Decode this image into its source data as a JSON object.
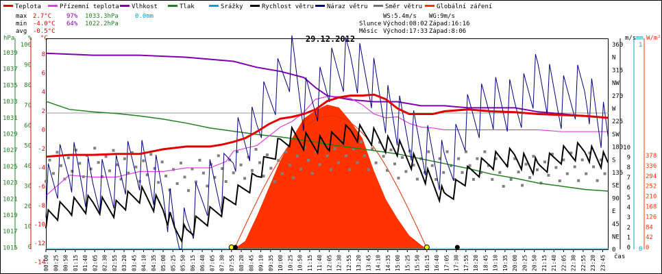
{
  "legend": [
    {
      "label": "Teplota",
      "color": "#e00000"
    },
    {
      "label": "Přízemní teplota",
      "color": "#e040e0"
    },
    {
      "label": "Vlhkost",
      "color": "#8000b0"
    },
    {
      "label": "Tlak",
      "color": "#208020"
    },
    {
      "label": "Srážky",
      "color": "#00a0d0"
    },
    {
      "label": "Rychlost větru",
      "color": "#000000"
    },
    {
      "label": "Náraz větru",
      "color": "#000080"
    },
    {
      "label": "Směr větru",
      "color": "#707070"
    },
    {
      "label": "Globální záření",
      "color": "#ff3300"
    }
  ],
  "stats": {
    "max_label": "max",
    "max_temp": "2.7°C",
    "max_hum": "97%",
    "max_press": "1033.3hPa",
    "max_rain": "0.0mm",
    "min_label": "min",
    "min_temp": "-4.0°C",
    "min_hum": "64%",
    "min_press": "1022.2hPa",
    "avg_label": "avg",
    "avg_temp": "-0.5°C"
  },
  "wind_info": {
    "ws": "WS:5.4m/s",
    "wg": "WG:9m/s"
  },
  "sun_info": {
    "label": "Slunce",
    "rise": "Východ:08:02",
    "set": "Západ:16:16"
  },
  "moon_info": {
    "label": "Měsíc",
    "rise": "Východ:17:33",
    "set": "Západ:8:06"
  },
  "chart_title": "29.12.2012",
  "axis_units": {
    "hpa": "hPa",
    "pct": "%",
    "degc": "°C",
    "ms": "m/s",
    "mm": "mm",
    "wm2": "W/m²",
    "time": "čas"
  },
  "chart_data": {
    "type": "line",
    "title": "29.12.2012",
    "x_ticks": [
      "00:00",
      "00:25",
      "00:50",
      "01:15",
      "01:40",
      "02:05",
      "02:30",
      "02:55",
      "03:20",
      "03:45",
      "04:10",
      "04:35",
      "05:00",
      "05:25",
      "05:50",
      "06:15",
      "06:40",
      "07:05",
      "07:30",
      "07:55",
      "08:20",
      "08:45",
      "09:10",
      "09:35",
      "10:00",
      "10:25",
      "10:50",
      "11:15",
      "11:40",
      "12:05",
      "12:30",
      "12:55",
      "13:20",
      "13:45",
      "14:10",
      "14:35",
      "15:00",
      "15:25",
      "15:50",
      "16:15",
      "16:40",
      "17:05",
      "17:30",
      "17:55",
      "18:20",
      "18:45",
      "19:10",
      "19:35",
      "20:00",
      "20:25",
      "20:50",
      "21:15",
      "21:40",
      "22:05",
      "22:30",
      "22:55",
      "23:20",
      "23:45"
    ],
    "axes": {
      "pressure_hpa": {
        "ticks": [
          "1039",
          "1037",
          "1035",
          "1033",
          "1031",
          "1029",
          "1027",
          "1025",
          "1023",
          "1021",
          "1019",
          "1017",
          "1015"
        ],
        "range": [
          1015,
          1041
        ]
      },
      "humidity_pct": {
        "ticks": [
          "100",
          "90",
          "80",
          "70",
          "60",
          "50",
          "40",
          "30",
          "20",
          "10",
          "0"
        ],
        "range": [
          0,
          104
        ]
      },
      "temp_c": {
        "ticks": [
          "8",
          "6",
          "4",
          "2",
          "0",
          "-2",
          "-4",
          "-6",
          "-8",
          "-10",
          "-12",
          "-14"
        ],
        "range": [
          -14,
          8.7
        ]
      },
      "wind_dir": {
        "ticks": [
          "360",
          "N",
          "315",
          "NW",
          "270",
          "W",
          "225",
          "SW",
          "180",
          "S",
          "135",
          "SE",
          "90",
          "E",
          "45",
          "NE",
          "0"
        ]
      },
      "wind_ms": {
        "ticks": [
          "10",
          "9",
          "8",
          "7",
          "6",
          "5",
          "4",
          "3",
          "2",
          "1",
          "0"
        ],
        "range": [
          0,
          10
        ]
      },
      "rain_mm": {
        "ticks": [
          "1",
          "0"
        ]
      },
      "radiation_wm2": {
        "ticks": [
          "378",
          "336",
          "294",
          "252",
          "210",
          "168",
          "126",
          "84",
          "42",
          "0"
        ],
        "range": [
          0,
          378
        ]
      }
    },
    "series": [
      {
        "name": "Teplota",
        "axis": "temp_c",
        "x": [
          0,
          1,
          2,
          3,
          4,
          5,
          6,
          7,
          7.5,
          8,
          8.5,
          9,
          9.5,
          10,
          10.5,
          11,
          11.5,
          12,
          12.5,
          13,
          13.5,
          14,
          14.5,
          15,
          15.5,
          16,
          16.5,
          17,
          18,
          19,
          20,
          21,
          22,
          23,
          23.98
        ],
        "values": [
          -4.0,
          -3.8,
          -3.8,
          -3.7,
          -3.7,
          -3.2,
          -2.9,
          -2.9,
          -2.7,
          -2.4,
          -2.0,
          -1.3,
          -0.5,
          0.1,
          0.3,
          0.6,
          1.1,
          2.0,
          2.4,
          2.6,
          2.6,
          2.7,
          2.2,
          1.2,
          0.6,
          0.6,
          0.6,
          0.9,
          1.1,
          0.9,
          0.8,
          0.6,
          0.5,
          0.4,
          0.2
        ]
      },
      {
        "name": "Přízemní teplota",
        "axis": "temp_c",
        "x": [
          0,
          1,
          2,
          3,
          4,
          5,
          6,
          7,
          7.7,
          8,
          9,
          9.5,
          10,
          10.5,
          11,
          11.5,
          12,
          12.5,
          13,
          13.5,
          14,
          14.5,
          15,
          15.5,
          16,
          16.5,
          17,
          18,
          19,
          20,
          21,
          22,
          23,
          23.98
        ],
        "values": [
          -8.2,
          -6.0,
          -6.2,
          -6.2,
          -5.6,
          -5.6,
          -5.2,
          -5.2,
          -4.5,
          -3.4,
          -2.8,
          -1.8,
          -0.8,
          -0.2,
          0.8,
          2.2,
          2.5,
          2.5,
          2.3,
          1.6,
          0.6,
          0.2,
          0.3,
          -0.4,
          -0.8,
          -0.9,
          -1.1,
          -1.1,
          -1.1,
          -1.1,
          -1.1,
          -1.3,
          -1.3,
          -1.3
        ]
      },
      {
        "name": "Vlhkost",
        "axis": "humidity_pct",
        "x": [
          0,
          2,
          4,
          6,
          8,
          9,
          10,
          11,
          11.5,
          12,
          13,
          14,
          15,
          16,
          17,
          18,
          19,
          20,
          21,
          22,
          23,
          23.98
        ],
        "values": [
          97,
          96,
          96,
          95,
          93,
          90,
          88,
          85,
          80,
          76,
          74,
          73,
          73,
          71,
          71,
          70,
          70,
          70,
          68,
          67,
          66,
          65
        ]
      },
      {
        "name": "Tlak",
        "axis": "pressure_hpa",
        "x": [
          0,
          1,
          2,
          3,
          4,
          5,
          6,
          7,
          8,
          9,
          10,
          11,
          12,
          13,
          14,
          15,
          16,
          17,
          18,
          19,
          20,
          21,
          22,
          23,
          23.98
        ],
        "values": [
          1033.3,
          1032.3,
          1032.0,
          1031.8,
          1031.5,
          1031.1,
          1030.6,
          1030.0,
          1029.6,
          1029.2,
          1028.9,
          1028.5,
          1028.0,
          1027.6,
          1027.2,
          1026.8,
          1026.2,
          1025.6,
          1025.0,
          1024.3,
          1023.8,
          1023.2,
          1022.8,
          1022.4,
          1022.2
        ]
      },
      {
        "name": "Srážky",
        "axis": "rain_mm",
        "x": [
          0,
          23.98
        ],
        "values": [
          0,
          0
        ]
      },
      {
        "name": "Rychlost větru",
        "axis": "wind_ms",
        "x": [
          0,
          1,
          2,
          3,
          4,
          5,
          5.5,
          6,
          7,
          7.5,
          8,
          9,
          10,
          10.5,
          11,
          12,
          13,
          14,
          15,
          16,
          17,
          18,
          19,
          20,
          21,
          22,
          23,
          23.98
        ],
        "values": [
          1.5,
          2.0,
          2.2,
          2.0,
          2.6,
          2.0,
          1.0,
          0.8,
          1.6,
          2.0,
          2.5,
          3.5,
          5.0,
          5.4,
          5.2,
          5.0,
          5.6,
          5.4,
          4.8,
          3.8,
          2.5,
          3.5,
          4.2,
          4.5,
          3.8,
          4.5,
          4.8,
          4.0
        ]
      },
      {
        "name": "Náraz větru",
        "axis": "wind_ms",
        "x": [
          0,
          1,
          2,
          3,
          4,
          5,
          5.5,
          6,
          7,
          7.5,
          8,
          9,
          10,
          10.5,
          11,
          12,
          13,
          14,
          15,
          16,
          17,
          18,
          19,
          20,
          21,
          22,
          23,
          23.98
        ],
        "values": [
          3,
          4,
          3,
          3.5,
          4,
          3,
          1,
          1,
          3,
          3,
          5,
          6,
          8,
          9,
          7,
          8,
          9,
          8,
          6,
          5,
          4,
          6,
          7,
          7,
          8,
          7,
          8,
          5
        ]
      },
      {
        "name": "Směr větru",
        "axis": "wind_dir",
        "x": [
          0,
          2,
          4,
          6,
          8,
          10,
          12,
          14,
          16,
          18,
          20,
          22,
          23.98
        ],
        "values": [
          150,
          155,
          140,
          130,
          145,
          150,
          165,
          160,
          150,
          145,
          140,
          145,
          140
        ]
      },
      {
        "name": "Globální záření",
        "axis": "radiation_wm2",
        "x": [
          8.0,
          8.5,
          9.0,
          9.5,
          10.0,
          10.5,
          11.0,
          11.5,
          12.0,
          12.5,
          13.0,
          13.5,
          14.0,
          14.5,
          15.0,
          15.5,
          16.0,
          16.27
        ],
        "values": [
          0,
          15,
          60,
          110,
          160,
          200,
          235,
          250,
          260,
          255,
          230,
          200,
          140,
          90,
          55,
          25,
          8,
          0
        ]
      }
    ],
    "sun_marks": [
      "07:55",
      "16:15"
    ],
    "moon_marks": [
      "08:05",
      "17:33"
    ]
  }
}
